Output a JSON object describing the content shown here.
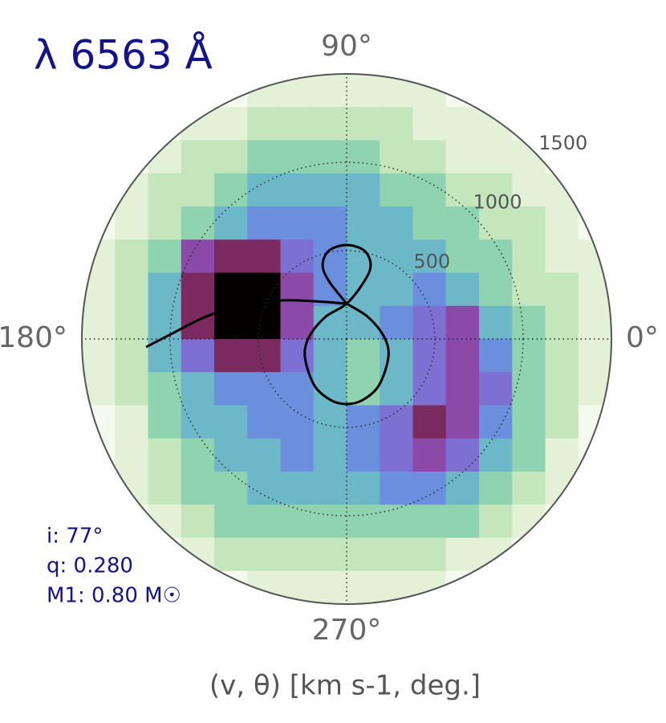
{
  "chart_data": {
    "type": "polar",
    "title": "λ 6563 Å",
    "xlabel": "(v, θ) [km s-1, deg.]",
    "annotations": [
      "i: 77°",
      "q: 0.280",
      "M1: 0.80 M☉"
    ],
    "rlim": [
      0,
      1500
    ],
    "rticks": [
      500,
      1000,
      1500
    ],
    "thetaticks": [
      {
        "value": 0,
        "label": "0°"
      },
      {
        "value": 90,
        "label": "90°"
      },
      {
        "value": 180,
        "label": "180°"
      },
      {
        "value": 270,
        "label": "270°"
      }
    ],
    "grid": true,
    "heatmap": {
      "xlim": [
        -1500,
        1500
      ],
      "ylim": [
        1500,
        -1500
      ],
      "colors": [
        "#f4faee",
        "#e3f2d6",
        "#c4e6bc",
        "#8fd3b0",
        "#6cb8c9",
        "#6b8fdc",
        "#7e6fd2",
        "#8c4aa8",
        "#7a2a5e",
        "#3d0c1a",
        "#050000"
      ],
      "values": [
        [
          0,
          0,
          0,
          0,
          0,
          1,
          1,
          1,
          1,
          1,
          1,
          0,
          0,
          0,
          0,
          0
        ],
        [
          0,
          0,
          0,
          1,
          1,
          2,
          2,
          2,
          2,
          2,
          1,
          1,
          1,
          0,
          0,
          0
        ],
        [
          0,
          0,
          1,
          2,
          2,
          3,
          3,
          3,
          3,
          2,
          2,
          1,
          1,
          1,
          0,
          0
        ],
        [
          0,
          1,
          2,
          2,
          3,
          4,
          4,
          4,
          4,
          3,
          3,
          2,
          2,
          1,
          1,
          0
        ],
        [
          0,
          1,
          2,
          3,
          4,
          5,
          5,
          5,
          4,
          4,
          3,
          3,
          2,
          2,
          1,
          0
        ],
        [
          1,
          2,
          3,
          7,
          8,
          8,
          6,
          5,
          4,
          4,
          4,
          3,
          3,
          2,
          1,
          1
        ],
        [
          1,
          2,
          4,
          8,
          10,
          10,
          7,
          5,
          4,
          4,
          5,
          4,
          3,
          2,
          2,
          1
        ],
        [
          1,
          2,
          4,
          8,
          10,
          10,
          7,
          4,
          4,
          5,
          6,
          7,
          4,
          3,
          2,
          1
        ],
        [
          1,
          2,
          4,
          6,
          8,
          8,
          6,
          4,
          3,
          4,
          6,
          7,
          5,
          3,
          2,
          1
        ],
        [
          1,
          2,
          3,
          4,
          5,
          5,
          5,
          4,
          3,
          4,
          6,
          7,
          6,
          3,
          2,
          1
        ],
        [
          0,
          1,
          3,
          4,
          4,
          5,
          5,
          4,
          5,
          6,
          8,
          7,
          5,
          3,
          2,
          0
        ],
        [
          0,
          1,
          2,
          3,
          4,
          4,
          5,
          4,
          5,
          6,
          7,
          6,
          4,
          3,
          1,
          0
        ],
        [
          0,
          1,
          2,
          3,
          3,
          4,
          4,
          4,
          4,
          5,
          5,
          4,
          3,
          2,
          1,
          0
        ],
        [
          0,
          0,
          1,
          2,
          3,
          3,
          3,
          3,
          3,
          3,
          3,
          3,
          2,
          1,
          0,
          0
        ],
        [
          0,
          0,
          0,
          1,
          2,
          2,
          2,
          2,
          2,
          2,
          2,
          1,
          1,
          0,
          0,
          0
        ],
        [
          0,
          0,
          0,
          0,
          0,
          1,
          1,
          1,
          1,
          1,
          1,
          0,
          0,
          0,
          0,
          0
        ]
      ]
    },
    "curves": [
      {
        "color": "#000000",
        "x": [
          0,
          -100,
          -136,
          -100,
          0,
          100,
          136,
          100,
          0,
          -123,
          -214,
          -236,
          -182,
          -91,
          0,
          91,
          182,
          236,
          214,
          123,
          0
        ],
        "y": [
          200,
          327,
          418,
          500,
          532,
          500,
          418,
          327,
          200,
          123,
          9,
          -105,
          -264,
          -345,
          -368,
          -345,
          -264,
          -105,
          9,
          123,
          200
        ]
      },
      {
        "color": "#000000",
        "x": [
          0,
          -191,
          -373,
          -600,
          -805,
          -986,
          -1136
        ],
        "y": [
          200,
          214,
          218,
          191,
          123,
          32,
          -45
        ]
      }
    ]
  }
}
